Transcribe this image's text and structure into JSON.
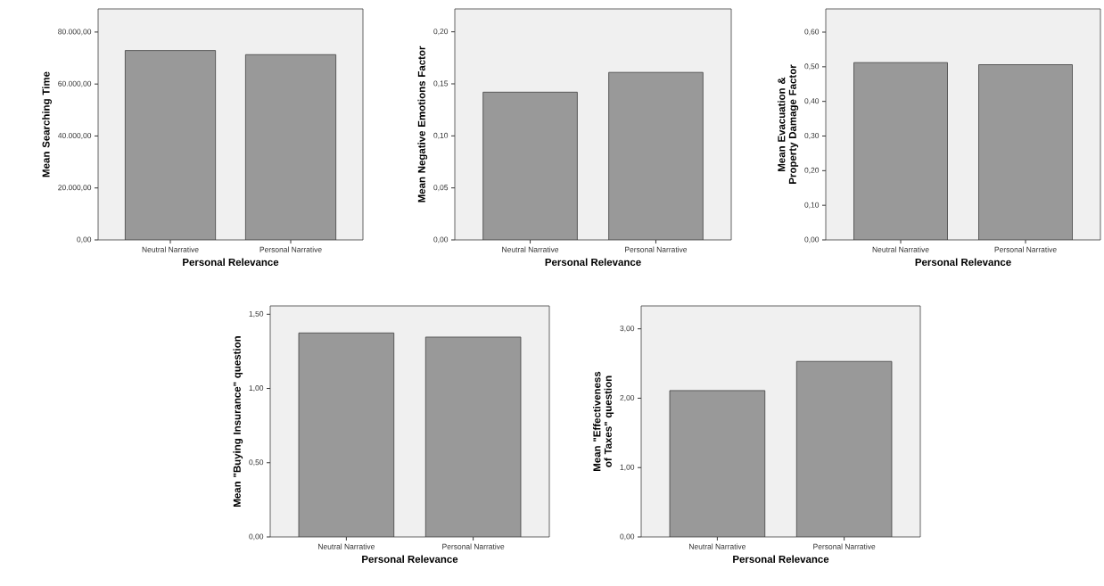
{
  "chart_data": [
    {
      "type": "bar",
      "xlabel": "Personal Relevance",
      "ylabel": "Mean Searching Time",
      "categories": [
        "Neutral Narrative",
        "Personal Narrative"
      ],
      "values": [
        72900,
        71300
      ],
      "color": "#999999",
      "ylim": [
        0,
        88900
      ],
      "yticks": [
        {
          "value": 0,
          "label": "0,00"
        },
        {
          "value": 20000,
          "label": "20.000,00"
        },
        {
          "value": 40000,
          "label": "40.000,00"
        },
        {
          "value": 60000,
          "label": "60.000,00"
        },
        {
          "value": 80000,
          "label": "80.000,00"
        }
      ]
    },
    {
      "type": "bar",
      "xlabel": "Personal Relevance",
      "ylabel": "Mean Negative Emotions Factor",
      "categories": [
        "Neutral Narrative",
        "Personal Narrative"
      ],
      "values": [
        0.142,
        0.161
      ],
      "color": "#999999",
      "ylim": [
        0,
        0.222
      ],
      "yticks": [
        {
          "value": 0,
          "label": "0,00"
        },
        {
          "value": 0.05,
          "label": "0,05"
        },
        {
          "value": 0.1,
          "label": "0,10"
        },
        {
          "value": 0.15,
          "label": "0,15"
        },
        {
          "value": 0.2,
          "label": "0,20"
        }
      ]
    },
    {
      "type": "bar",
      "xlabel": "Personal Relevance",
      "ylabel": "Mean Evacuation & Property Damage Factor",
      "categories": [
        "Neutral Narrative",
        "Personal Narrative"
      ],
      "values": [
        0.512,
        0.506
      ],
      "color": "#999999",
      "ylim": [
        0,
        0.667
      ],
      "yticks": [
        {
          "value": 0,
          "label": "0,00"
        },
        {
          "value": 0.1,
          "label": "0,10"
        },
        {
          "value": 0.2,
          "label": "0,20"
        },
        {
          "value": 0.3,
          "label": "0,30"
        },
        {
          "value": 0.4,
          "label": "0,40"
        },
        {
          "value": 0.5,
          "label": "0,50"
        },
        {
          "value": 0.6,
          "label": "0,60"
        }
      ]
    },
    {
      "type": "bar",
      "xlabel": "Personal Relevance",
      "ylabel": "Mean \"Buying Insurance\" question",
      "categories": [
        "Neutral Narrative",
        "Personal Narrative"
      ],
      "values": [
        1.374,
        1.346
      ],
      "color": "#999999",
      "ylim": [
        0,
        1.556
      ],
      "yticks": [
        {
          "value": 0,
          "label": "0,00"
        },
        {
          "value": 0.5,
          "label": "0,50"
        },
        {
          "value": 1,
          "label": "1,00"
        },
        {
          "value": 1.5,
          "label": "1,50"
        }
      ]
    },
    {
      "type": "bar",
      "xlabel": "Personal Relevance",
      "ylabel": "Mean \"Effectiveness of Taxes\" question",
      "categories": [
        "Neutral Narrative",
        "Personal Narrative"
      ],
      "values": [
        2.11,
        2.53
      ],
      "color": "#999999",
      "ylim": [
        0,
        3.33
      ],
      "yticks": [
        {
          "value": 0,
          "label": "0,00"
        },
        {
          "value": 1,
          "label": "1,00"
        },
        {
          "value": 2,
          "label": "2,00"
        },
        {
          "value": 3,
          "label": "3,00"
        }
      ]
    }
  ]
}
